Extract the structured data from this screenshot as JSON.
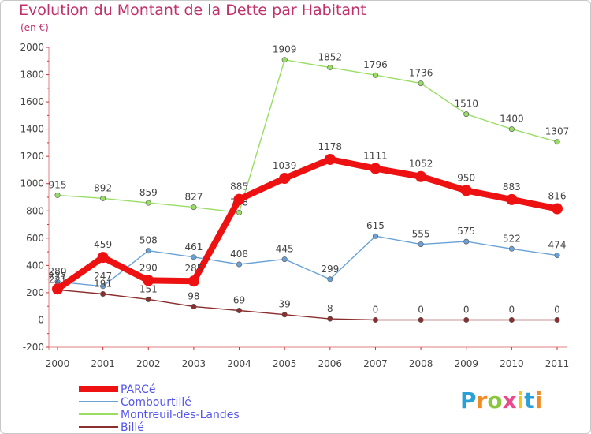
{
  "chart_data": {
    "type": "line",
    "title": "Evolution du Montant de la Dette par Habitant",
    "subtitle": "(en €)",
    "xlabel": "",
    "ylabel": "",
    "categories": [
      "2000",
      "2001",
      "2002",
      "2003",
      "2004",
      "2005",
      "2006",
      "2007",
      "2008",
      "2009",
      "2010",
      "2011"
    ],
    "ylim": [
      -200,
      2000
    ],
    "ytick_step": 200,
    "grid": false,
    "legend_position": "bottom-left",
    "series": [
      {
        "name": "PARCé",
        "color": "#ee1111",
        "emphasis": true,
        "values": [
          227,
          459,
          290,
          285,
          885,
          1039,
          1178,
          1111,
          1052,
          950,
          883,
          816
        ],
        "labels": [
          "227",
          "459",
          "290",
          "285",
          "885",
          "1039",
          "1178",
          "1111",
          "1052",
          "950",
          "883",
          "816"
        ]
      },
      {
        "name": "Combourtillé",
        "color": "#6aa2d8",
        "emphasis": false,
        "values": [
          280,
          247,
          508,
          461,
          408,
          445,
          299,
          615,
          555,
          575,
          522,
          474
        ],
        "labels": [
          "280",
          "247",
          "508",
          "461",
          "408",
          "445",
          "299",
          "615",
          "555",
          "575",
          "522",
          "474"
        ]
      },
      {
        "name": "Montreuil-des-Landes",
        "color": "#99dd66",
        "emphasis": false,
        "values": [
          915,
          892,
          859,
          827,
          788,
          1909,
          1852,
          1796,
          1736,
          1510,
          1400,
          1307
        ],
        "labels": [
          "915",
          "892",
          "859",
          "827",
          "788",
          "1909",
          "1852",
          "1796",
          "1736",
          "1510",
          "1400",
          "1307"
        ]
      },
      {
        "name": "Billé",
        "color": "#8b2e2e",
        "emphasis": false,
        "values": [
          221,
          191,
          151,
          98,
          69,
          39,
          8,
          0,
          0,
          0,
          0,
          0
        ],
        "labels": [
          "221",
          "191",
          "151",
          "98",
          "69",
          "39",
          "8",
          "0",
          "0",
          "0",
          "0",
          "0"
        ]
      }
    ]
  },
  "logo": {
    "text": "Proxiti",
    "colors": [
      "#2aa0d8",
      "#f08a24",
      "#8ac640",
      "#e84a8c",
      "#f5c518"
    ]
  }
}
